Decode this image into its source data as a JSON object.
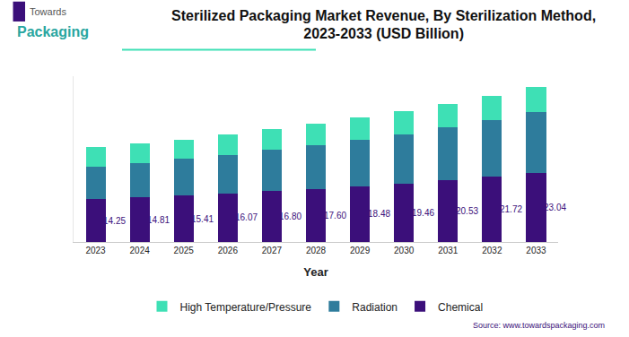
{
  "chart_data": {
    "type": "bar",
    "stacked": true,
    "title": "Sterilized Packaging Market Revenue, By Sterilization Method, 2023-2033 (USD Billion)",
    "x_label": "Year",
    "categories": [
      "2023",
      "2024",
      "2025",
      "2026",
      "2027",
      "2028",
      "2029",
      "2030",
      "2031",
      "2032",
      "2033"
    ],
    "series": [
      {
        "name": "Chemical",
        "color": "#3b0f7a",
        "data_labels": true,
        "values": [
          14.25,
          14.81,
          15.41,
          16.07,
          16.8,
          17.6,
          18.48,
          19.46,
          20.53,
          21.72,
          23.04
        ],
        "value_labels": [
          "14.25",
          "14.81",
          "15.41",
          "16.07",
          "16.80",
          "17.60",
          "18.48",
          "19.46",
          "20.53",
          "21.72",
          "23.04"
        ]
      },
      {
        "name": "Radiation",
        "color": "#2e7c9c",
        "values": [
          10.7,
          11.3,
          12.1,
          12.7,
          13.8,
          14.4,
          15.5,
          16.3,
          17.5,
          18.6,
          20.0
        ]
      },
      {
        "name": "High Temperature/Pressure",
        "color": "#3ee0b5",
        "values": [
          6.5,
          6.5,
          6.5,
          6.8,
          6.8,
          7.3,
          7.3,
          7.6,
          7.9,
          8.2,
          8.5
        ]
      }
    ],
    "ylim": [
      0,
      55
    ],
    "yticks": [],
    "tick_labels": "x",
    "grid": false,
    "legend": "bottom",
    "annotations": [
      "Towards",
      "Packaging",
      "Source: www.towardspackaging.com"
    ]
  }
}
